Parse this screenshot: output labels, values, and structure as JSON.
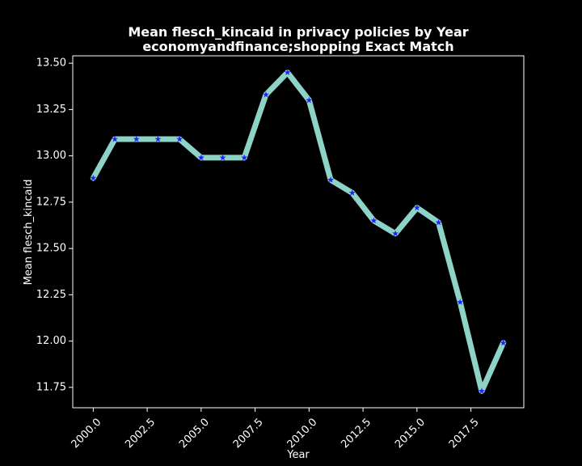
{
  "chart_data": {
    "type": "line",
    "title": "Mean flesch_kincaid in privacy policies by Year",
    "subtitle": "economyandfinance;shopping Exact Match",
    "xlabel": "Year",
    "ylabel": "Mean flesch_kincaid",
    "xlim": [
      1999.05,
      2019.95
    ],
    "ylim": [
      11.64,
      13.54
    ],
    "x_ticks": [
      2000.0,
      2002.5,
      2005.0,
      2007.5,
      2010.0,
      2012.5,
      2015.0,
      2017.5
    ],
    "x_tick_labels": [
      "2000.0",
      "2002.5",
      "2005.0",
      "2007.5",
      "2010.0",
      "2012.5",
      "2015.0",
      "2017.5"
    ],
    "y_ticks": [
      11.75,
      12.0,
      12.25,
      12.5,
      12.75,
      13.0,
      13.25,
      13.5
    ],
    "y_tick_labels": [
      "11.75",
      "12.00",
      "12.25",
      "12.50",
      "12.75",
      "13.00",
      "13.25",
      "13.50"
    ],
    "grid": false,
    "series": [
      {
        "x": [
          2000,
          2001,
          2002,
          2003,
          2004,
          2005,
          2006,
          2007,
          2008,
          2009,
          2010,
          2011,
          2012,
          2013,
          2014,
          2015,
          2016,
          2017,
          2018,
          2019
        ],
        "values": [
          12.88,
          13.09,
          13.09,
          13.09,
          13.09,
          12.99,
          12.99,
          12.99,
          13.33,
          13.45,
          13.3,
          12.87,
          12.8,
          12.65,
          12.58,
          12.72,
          12.64,
          12.21,
          11.73,
          11.99
        ],
        "line_color": "#8dd3c7",
        "marker_color": "#1f1fff",
        "marker": "star"
      }
    ]
  }
}
